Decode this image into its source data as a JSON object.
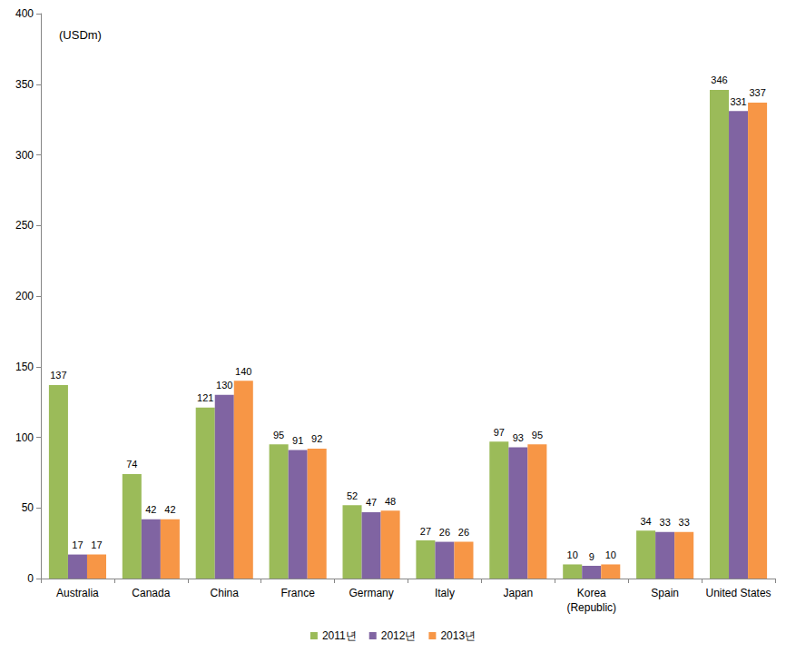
{
  "chart_data": {
    "type": "bar",
    "ylabel": "(USDm)",
    "categories": [
      "Australia",
      "Canada",
      "China",
      "France",
      "Germany",
      "Italy",
      "Japan",
      "Korea\n(Republic)",
      "Spain",
      "United States"
    ],
    "series": [
      {
        "name": "2011년",
        "color": "#9bbb59",
        "values": [
          137,
          74,
          121,
          95,
          52,
          27,
          97,
          10,
          34,
          346
        ]
      },
      {
        "name": "2012년",
        "color": "#8064a2",
        "values": [
          17,
          42,
          130,
          91,
          47,
          26,
          93,
          9,
          33,
          331
        ]
      },
      {
        "name": "2013년",
        "color": "#f79646",
        "values": [
          17,
          42,
          140,
          92,
          48,
          26,
          95,
          10,
          33,
          337
        ]
      }
    ],
    "ylim": [
      0,
      400
    ],
    "yticks": [
      0,
      50,
      100,
      150,
      200,
      250,
      300,
      350,
      400
    ],
    "grid": false,
    "legend": "bottom",
    "data_labels": true
  }
}
